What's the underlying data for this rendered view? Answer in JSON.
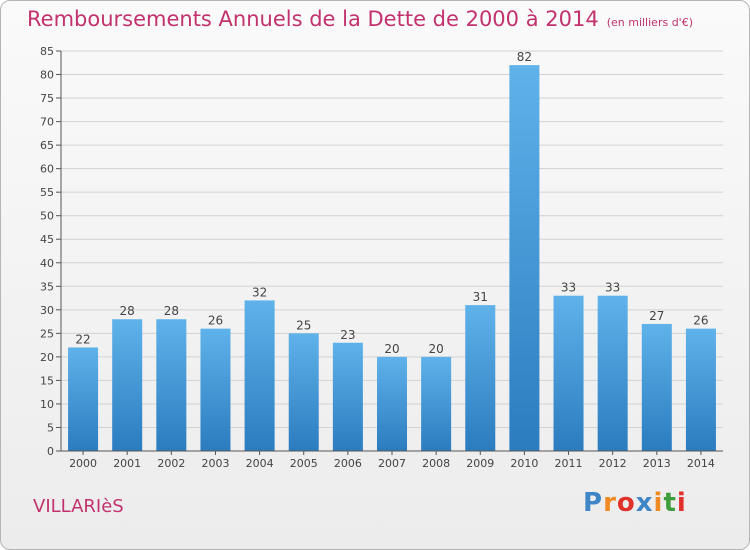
{
  "header": {
    "title": "Remboursements Annuels de la Dette de 2000 à 2014",
    "unit": "(en milliers d'€)"
  },
  "footer": {
    "place": "VILLARIèS",
    "logo": {
      "letters": [
        "P",
        "r",
        "o",
        "x",
        "i",
        "t",
        "i"
      ],
      "colors": [
        "#3f86c7",
        "#f08a24",
        "#e0322b",
        "#3f86c7",
        "#f08a24",
        "#3f9e3c",
        "#e0322b"
      ]
    }
  },
  "colors": {
    "title": "#c2326e",
    "bar_light": "#5fb2ea",
    "bar_dark": "#2b7cbf",
    "grid": "#d2d2d2",
    "axis": "#555555"
  },
  "chart_data": {
    "type": "bar",
    "title": "Remboursements Annuels de la Dette de 2000 à 2014",
    "subtitle": "(en milliers d'€)",
    "xlabel": "",
    "ylabel": "",
    "categories": [
      "2000",
      "2001",
      "2002",
      "2003",
      "2004",
      "2005",
      "2006",
      "2007",
      "2008",
      "2009",
      "2010",
      "2011",
      "2012",
      "2013",
      "2014"
    ],
    "values": [
      22,
      28,
      28,
      26,
      32,
      25,
      23,
      20,
      20,
      31,
      82,
      33,
      33,
      27,
      26
    ],
    "ylim": [
      0,
      85
    ],
    "yticks": [
      0,
      5,
      10,
      15,
      20,
      25,
      30,
      35,
      40,
      45,
      50,
      55,
      60,
      65,
      70,
      75,
      80,
      85
    ],
    "grid": true,
    "data_labels": true
  }
}
